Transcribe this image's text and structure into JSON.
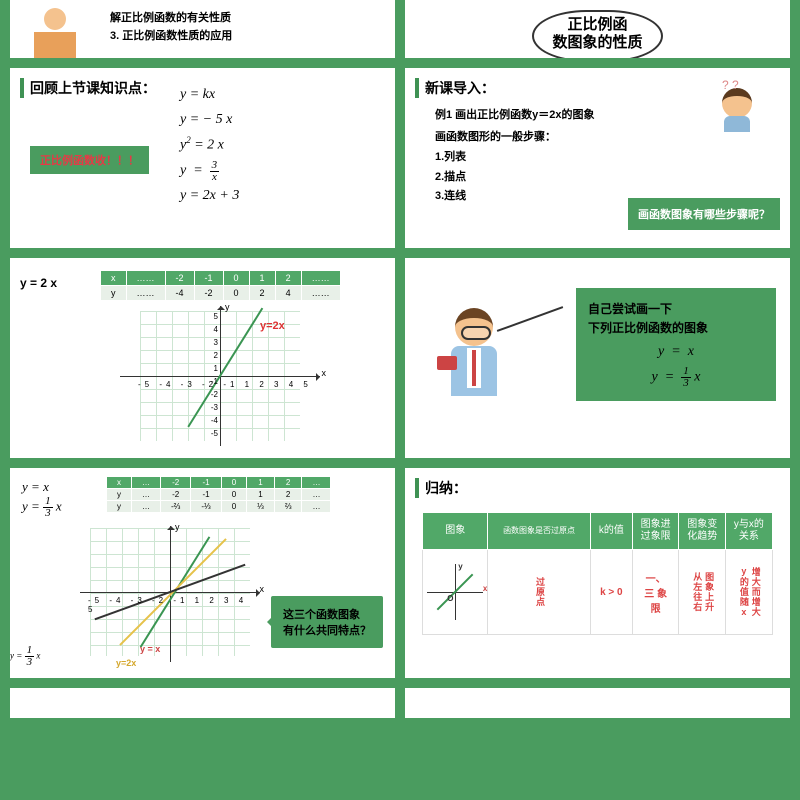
{
  "colors": {
    "green": "#4a9c5f",
    "greenDark": "#3a9552",
    "red": "#d44",
    "tableHead": "#51a868"
  },
  "slide1": {
    "lines": [
      "解正比例函数的有关性质",
      "3. 正比例函数性质的应用"
    ]
  },
  "slide2": {
    "title": "正比例函\n数图象的性质"
  },
  "slide3": {
    "title": "回顾上节课知识点：",
    "equations": [
      "y  =  kx",
      "y  =  − 5 x",
      "y²  =  2 x",
      "y   =   3 / x",
      "y = 2x + 3"
    ],
    "tag": "正比例函数收！！！"
  },
  "slide4": {
    "title": "新课导入：",
    "example": "例1   画出正比例函数y＝2x的图象",
    "stepsTitle": "画函数图形的一般步骤：",
    "steps": [
      "1.列表",
      "2.描点",
      "3.连线"
    ],
    "question": "画函数图象有哪些步骤呢？"
  },
  "slide5": {
    "label": "y = 2 x",
    "table": {
      "head": [
        "x",
        "……",
        "-2",
        "-1",
        "0",
        "1",
        "2",
        "……"
      ],
      "row": [
        "y",
        "……",
        "-4",
        "-2",
        "0",
        "2",
        "4",
        "……"
      ]
    },
    "lineLabel": "y=2x",
    "xticks": "-5 -4 -3 -2 -1    1  2  3  4  5",
    "yticks": [
      "5",
      "4",
      "3",
      "2",
      "1",
      "-1",
      "-2",
      "-3",
      "-4",
      "-5"
    ]
  },
  "slide6": {
    "line1": "自己尝试画一下",
    "line2": "下列正比例函数的图象",
    "eq1": "y   =   x",
    "eq2": "y   =   (1/3) x"
  },
  "slide7": {
    "eq1": "y  =  x",
    "eq2": "y  =  (1/3) x",
    "table": {
      "head": [
        "x",
        "…",
        "-2",
        "-1",
        "0",
        "1",
        "2",
        "…"
      ],
      "r1": [
        "y",
        "…",
        "-2",
        "-1",
        "0",
        "1",
        "2",
        "…"
      ],
      "r2": [
        "y",
        "…",
        "-⅔",
        "-⅓",
        "0",
        "⅓",
        "⅔",
        "…"
      ]
    },
    "question": "这三个函数图象\n有什么共同特点？",
    "legendA": "y  =  (1/3) x",
    "legendB": "y=2x",
    "legendC": "y = x"
  },
  "slide8": {
    "title": "归纳：",
    "head": [
      "图象",
      "函数图象是否过原点",
      "k的值",
      "图象进\n过象限",
      "图象变\n化趋势",
      "y与x的\n关系"
    ],
    "row": {
      "origin": "过原点",
      "k": "k > 0",
      "quadrant": "一、三 象限",
      "trend": "从左往右图象上升",
      "relation": "y的随x值增而增大大"
    }
  }
}
